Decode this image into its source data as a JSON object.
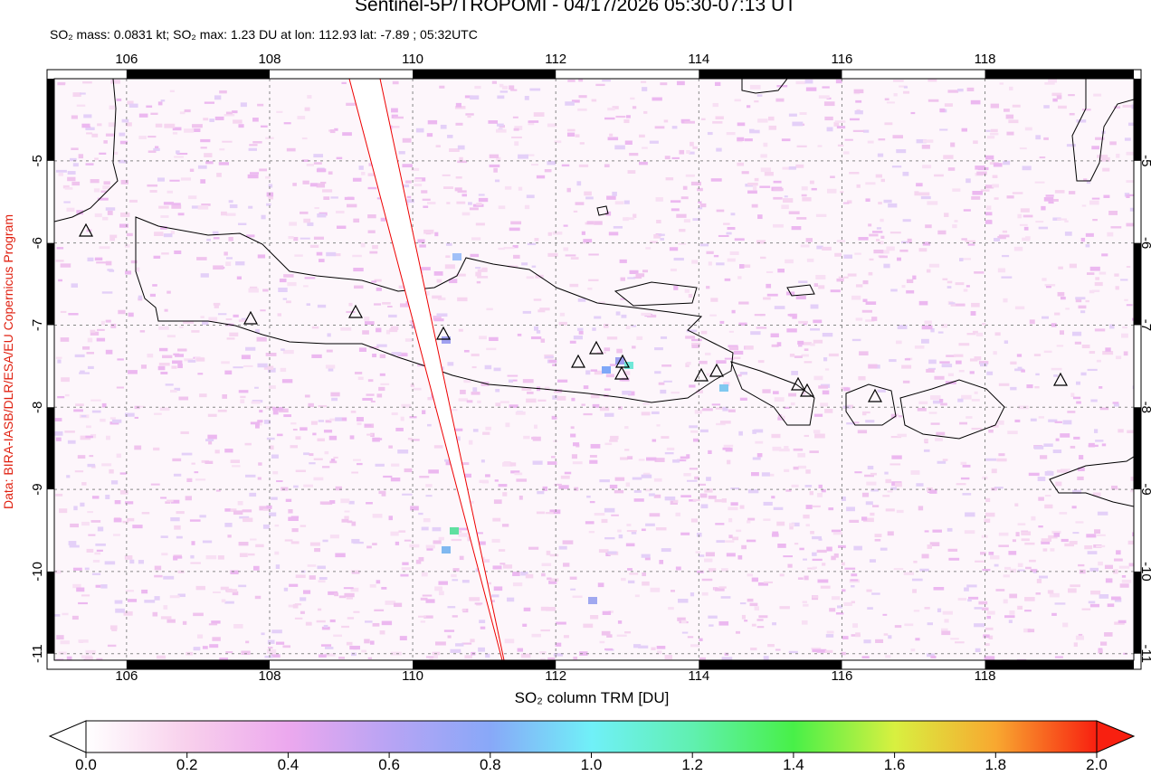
{
  "title": "Sentinel-5P/TROPOMI - 04/17/2026 05:30-07:13 UT",
  "subtitle": "SO₂ mass: 0.0831 kt; SO₂ max: 1.23 DU at lon: 112.93 lat: -7.89 ; 05:32UTC",
  "credit": "Data: BIRA-IASB/DLR/ESA/EU Copernicus Program",
  "map": {
    "xlim": [
      104.99,
      120.08
    ],
    "ylim": [
      -11.08,
      -4.0
    ],
    "xticks": [
      106,
      108,
      110,
      112,
      114,
      116,
      118
    ],
    "yticks": [
      -5,
      -6,
      -7,
      -8,
      -9,
      -10,
      -11
    ]
  },
  "colorbar": {
    "label": "SO₂ column TRM [DU]",
    "lim": [
      0,
      2
    ],
    "ticks": [
      {
        "value": 0,
        "label": "0.0"
      },
      0.2,
      0.4,
      0.6,
      0.8,
      {
        "value": 1,
        "label": "1.0"
      },
      1.2,
      1.4,
      1.6,
      1.8,
      {
        "value": 2,
        "label": "2.0"
      }
    ]
  }
}
